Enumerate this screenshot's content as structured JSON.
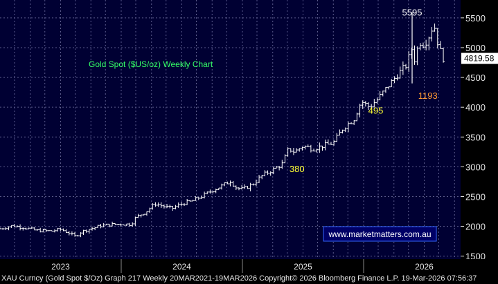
{
  "footer_text": "XAU Curncy (Gold Spot  $/Oz) Graph 217 Weekly 20MAR2021-19MAR2026 Copyright© 2026 Bloomberg Finance L.P. 19-Mar-2026 07:56:37",
  "watermark": "www.marketmatters.com.au",
  "colors": {
    "background": "#000033",
    "grid": "#5a5a8c",
    "candle": "#ffffff",
    "title": "#33ff66",
    "yellow_annotation": "#ffff33",
    "orange_annotation": "#ff9933",
    "watermark_bg": "#000066",
    "watermark_border": "#3366ff",
    "watermark_text": "#ffffff",
    "axis_bg": "#000000",
    "axis_text": "#e6e6e6",
    "last_price_bg": "#ffffff",
    "last_price_text": "#000000"
  },
  "chart_data": {
    "type": "ohlc",
    "title": "Gold Spot ($US/oz) Weekly Chart",
    "xlabel": "",
    "ylabel": "",
    "ylim": [
      1450,
      5800
    ],
    "x_range": [
      2022.5,
      2026.3
    ],
    "y_ticks": [
      1500,
      2000,
      2500,
      3000,
      3500,
      4000,
      4500,
      5000,
      5500
    ],
    "x_tick_labels": [
      {
        "label": "2023",
        "x": 2023.0
      },
      {
        "label": "2024",
        "x": 2024.0
      },
      {
        "label": "2025",
        "x": 2025.0
      },
      {
        "label": "2026",
        "x": 2026.0
      }
    ],
    "x_gridlines": [
      2022.62,
      2022.75,
      2022.87,
      2023.0,
      2023.12,
      2023.25,
      2023.37,
      2023.5,
      2023.62,
      2023.75,
      2023.87,
      2024.0,
      2024.12,
      2024.25,
      2024.37,
      2024.5,
      2024.62,
      2024.75,
      2024.87,
      2025.0,
      2025.12,
      2025.25,
      2025.37,
      2025.5,
      2025.62,
      2025.75,
      2025.87,
      2026.0,
      2026.12,
      2026.25
    ],
    "x_major_ticks": [
      2023.5,
      2024.5,
      2025.5
    ],
    "price_path": [
      [
        2022.5,
        1960
      ],
      [
        2022.6,
        2010
      ],
      [
        2022.7,
        1980
      ],
      [
        2022.8,
        1930
      ],
      [
        2022.92,
        1920
      ],
      [
        2023.0,
        1950
      ],
      [
        2023.08,
        1880
      ],
      [
        2023.12,
        1830
      ],
      [
        2023.17,
        1910
      ],
      [
        2023.25,
        1960
      ],
      [
        2023.33,
        2010
      ],
      [
        2023.42,
        2030
      ],
      [
        2023.5,
        2040
      ],
      [
        2023.58,
        2030
      ],
      [
        2023.62,
        2150
      ],
      [
        2023.7,
        2240
      ],
      [
        2023.78,
        2380
      ],
      [
        2023.86,
        2330
      ],
      [
        2023.92,
        2300
      ],
      [
        2024.0,
        2380
      ],
      [
        2024.08,
        2420
      ],
      [
        2024.16,
        2500
      ],
      [
        2024.25,
        2600
      ],
      [
        2024.33,
        2680
      ],
      [
        2024.4,
        2760
      ],
      [
        2024.45,
        2650
      ],
      [
        2024.5,
        2620
      ],
      [
        2024.58,
        2700
      ],
      [
        2024.66,
        2850
      ],
      [
        2024.75,
        2950
      ],
      [
        2024.83,
        3050
      ],
      [
        2024.88,
        3300
      ],
      [
        2024.93,
        3250
      ],
      [
        2025.0,
        3350
      ],
      [
        2025.08,
        3300
      ],
      [
        2025.16,
        3350
      ],
      [
        2025.25,
        3400
      ],
      [
        2025.33,
        3650
      ],
      [
        2025.42,
        3800
      ],
      [
        2025.48,
        4100
      ],
      [
        2025.55,
        4000
      ],
      [
        2025.62,
        4150
      ],
      [
        2025.7,
        4350
      ],
      [
        2025.78,
        4550
      ],
      [
        2025.85,
        4700
      ],
      [
        2025.9,
        5000
      ],
      [
        2025.92,
        4800
      ],
      [
        2025.96,
        5100
      ],
      [
        2026.0,
        5050
      ],
      [
        2026.04,
        5200
      ],
      [
        2026.08,
        5400
      ],
      [
        2026.12,
        5000
      ],
      [
        2026.16,
        4820
      ]
    ],
    "spike": {
      "x": 2025.9,
      "high": 5595,
      "low": 4400
    },
    "last_price": {
      "label": "4819.58",
      "value": 4819.58
    },
    "annotations": [
      {
        "text": "5595",
        "x": 2025.9,
        "y": 5595,
        "color": "white"
      },
      {
        "text": "495",
        "x": 2025.6,
        "y": 3950,
        "color": "yellow"
      },
      {
        "text": "380",
        "x": 2024.95,
        "y": 2970,
        "color": "yellow"
      },
      {
        "text": "1193",
        "x": 2026.03,
        "y": 4200,
        "color": "orange"
      }
    ]
  }
}
